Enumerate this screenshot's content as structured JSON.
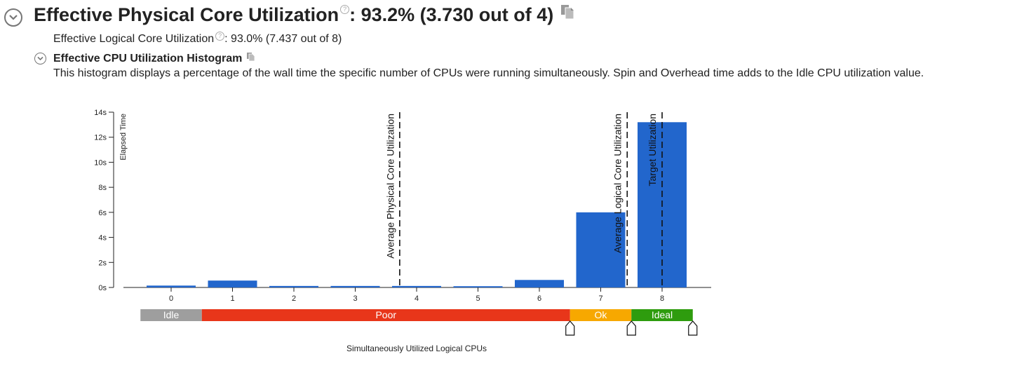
{
  "header": {
    "title_label": "Effective Physical Core Utilization",
    "title_value": ": 93.2% (3.730 out of 4)",
    "help_glyph": "?"
  },
  "logical": {
    "label": "Effective Logical Core Utilization",
    "value": ": 93.0% (7.437 out of 8)"
  },
  "histogram": {
    "title": "Effective CPU Utilization Histogram",
    "description": "This histogram displays a percentage of the wall time the specific number of CPUs were running simultaneously. Spin and Overhead time adds to the Idle CPU utilization value."
  },
  "colors": {
    "bar": "#2266cc",
    "idle": "#9e9e9e",
    "poor": "#e8361a",
    "ok": "#f7a800",
    "ideal": "#2e9c0e"
  },
  "chart_data": {
    "type": "bar",
    "categories": [
      "0",
      "1",
      "2",
      "3",
      "4",
      "5",
      "6",
      "7",
      "8"
    ],
    "values": [
      0.15,
      0.55,
      0.12,
      0.12,
      0.12,
      0.1,
      0.6,
      6.0,
      13.2
    ],
    "ylabel": "Elapsed Time",
    "xlabel": "Simultaneously Utilized Logical CPUs",
    "ylim": [
      0,
      14
    ],
    "yticks": [
      "0s",
      "2s",
      "4s",
      "6s",
      "8s",
      "10s",
      "12s",
      "14s"
    ],
    "ytick_values": [
      0,
      2,
      4,
      6,
      8,
      10,
      12,
      14
    ],
    "reference_lines": [
      {
        "label": "Average Physical Core Utilization",
        "x": 3.73
      },
      {
        "label": "Average Logical Core Utilization",
        "x": 7.437
      },
      {
        "label": "Target Utilization",
        "x": 8
      }
    ],
    "utilization_bands": [
      {
        "label": "Idle",
        "from": -0.5,
        "to": 0.5,
        "color": "#9e9e9e"
      },
      {
        "label": "Poor",
        "from": 0.5,
        "to": 6.5,
        "color": "#e8361a"
      },
      {
        "label": "Ok",
        "from": 6.5,
        "to": 7.5,
        "color": "#f7a800"
      },
      {
        "label": "Ideal",
        "from": 7.5,
        "to": 8.5,
        "color": "#2e9c0e"
      }
    ],
    "band_handles": [
      6.5,
      7.5,
      8.5
    ]
  }
}
